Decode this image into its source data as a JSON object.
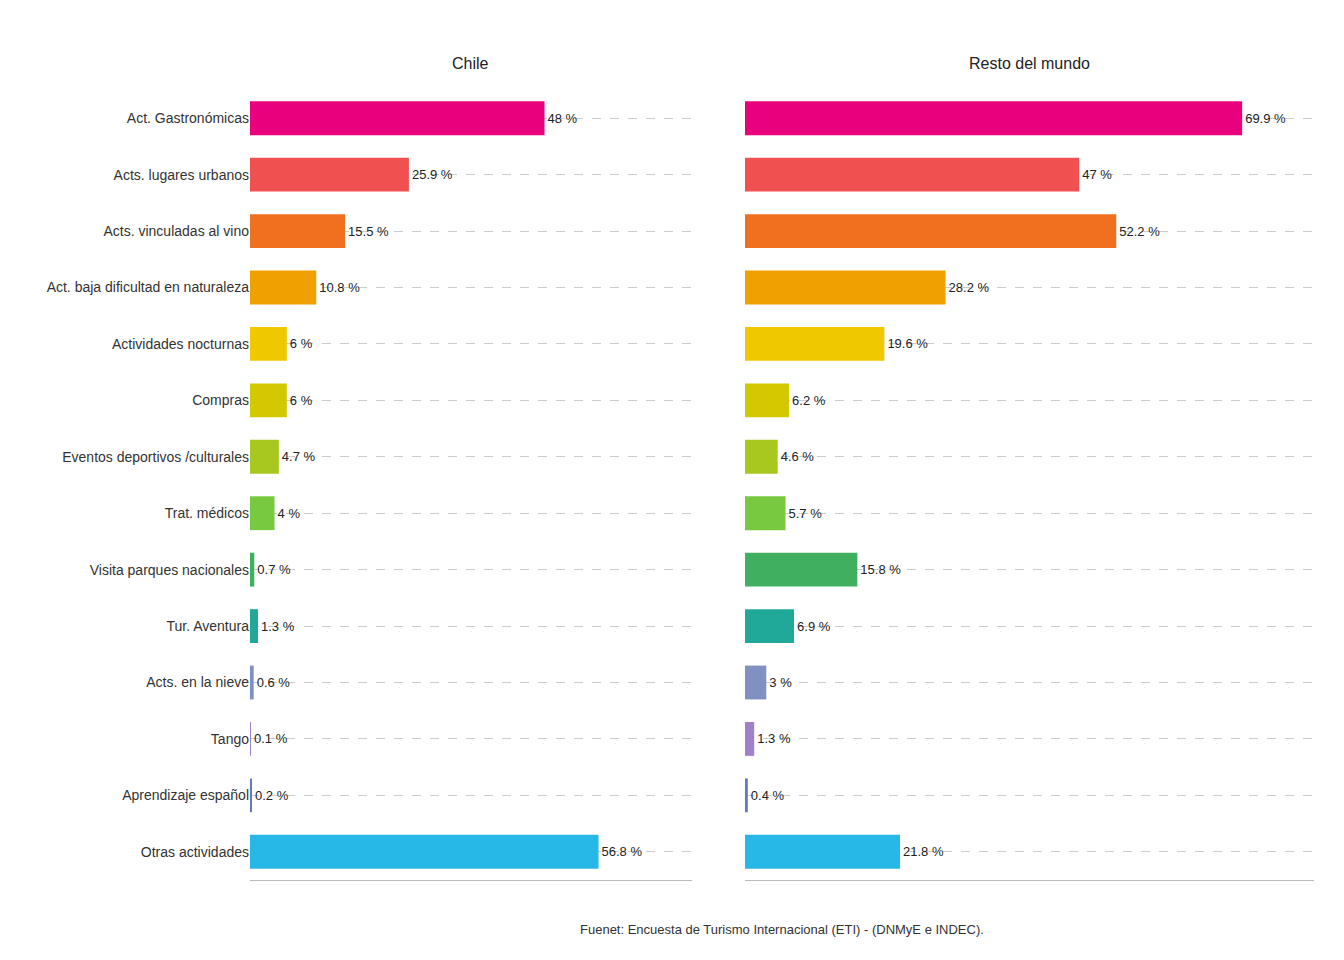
{
  "chart_data": [
    {
      "type": "bar",
      "orientation": "horizontal",
      "title": "Chile",
      "categories": [
        "Act. Gastronómicas",
        "Acts. lugares urbanos",
        "Acts. vinculadas al vino",
        "Act. baja dificultad en naturaleza",
        "Actividades nocturnas",
        "Compras",
        "Eventos deportivos /culturales",
        "Trat. médicos",
        "Visita parques nacionales",
        "Tur. Aventura",
        "Acts. en la nieve",
        "Tango",
        "Aprendizaje español",
        "Otras actividades"
      ],
      "values": [
        48.0,
        25.9,
        15.5,
        10.8,
        6.0,
        6.0,
        4.7,
        4.0,
        0.7,
        1.3,
        0.6,
        0.1,
        0.2,
        56.8
      ],
      "value_labels": [
        "48 %",
        "25.9 %",
        "15.5 %",
        "10.8 %",
        "6 %",
        "6 %",
        "4.7 %",
        "4 %",
        "0.7 %",
        "1.3 %",
        "0.6 %",
        "0.1 %",
        "0.2 %",
        "56.8 %"
      ],
      "colors": [
        "#e8007c",
        "#f05050",
        "#f07020",
        "#f0a000",
        "#f0c800",
        "#d4c800",
        "#a8c820",
        "#78c840",
        "#40b060",
        "#20a898",
        "#8090c0",
        "#a080c8",
        "#6878c0",
        "#28b8e8"
      ],
      "xlim": [
        0,
        72
      ],
      "data_labels": true,
      "grid": true,
      "tick_labels": "y"
    },
    {
      "type": "bar",
      "orientation": "horizontal",
      "title": "Resto del mundo",
      "categories": [
        "Act. Gastronómicas",
        "Acts. lugares urbanos",
        "Acts. vinculadas al vino",
        "Act. baja dificultad en naturaleza",
        "Actividades nocturnas",
        "Compras",
        "Eventos deportivos /culturales",
        "Trat. médicos",
        "Visita parques nacionales",
        "Tur. Aventura",
        "Acts. en la nieve",
        "Tango",
        "Aprendizaje español",
        "Otras actividades"
      ],
      "values": [
        69.9,
        47.0,
        52.2,
        28.2,
        19.6,
        6.2,
        4.6,
        5.7,
        15.8,
        6.9,
        3.0,
        1.3,
        0.4,
        21.8
      ],
      "value_labels": [
        "69.9 %",
        "47 %",
        "52.2 %",
        "28.2 %",
        "19.6 %",
        "6.2 %",
        "4.6 %",
        "5.7 %",
        "15.8 %",
        "6.9 %",
        "3 %",
        "1.3 %",
        "0.4 %",
        "21.8 %"
      ],
      "colors": [
        "#e8007c",
        "#f05050",
        "#f07020",
        "#f0a000",
        "#f0c800",
        "#d4c800",
        "#a8c820",
        "#78c840",
        "#40b060",
        "#20a898",
        "#8090c0",
        "#a080c8",
        "#6878c0",
        "#28b8e8"
      ],
      "xlim": [
        0,
        80
      ],
      "data_labels": true,
      "grid": true,
      "tick_labels": false
    }
  ],
  "footer": "Fuenet: Encuesta de Turismo Internacional (ETI) - (DNMyE e INDEC)."
}
